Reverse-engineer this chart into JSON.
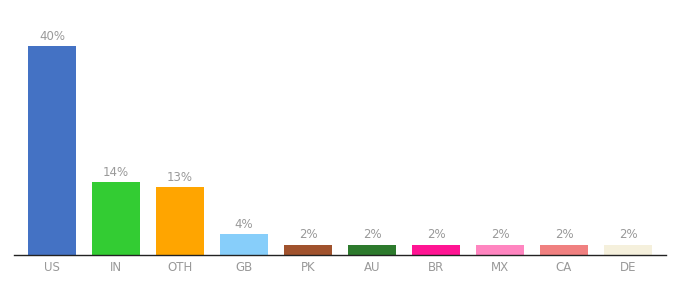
{
  "categories": [
    "US",
    "IN",
    "OTH",
    "GB",
    "PK",
    "AU",
    "BR",
    "MX",
    "CA",
    "DE"
  ],
  "values": [
    40,
    14,
    13,
    4,
    2,
    2,
    2,
    2,
    2,
    2
  ],
  "bar_colors": [
    "#4472C4",
    "#33CC33",
    "#FFA500",
    "#87CEFA",
    "#A0522D",
    "#2D7A2D",
    "#FF1493",
    "#FF85C0",
    "#F08080",
    "#F5F0DC"
  ],
  "ylim": [
    0,
    46
  ],
  "background_color": "#ffffff",
  "label_color": "#999999",
  "label_fontsize": 8.5,
  "axis_label_fontsize": 8.5,
  "bar_width": 0.75
}
